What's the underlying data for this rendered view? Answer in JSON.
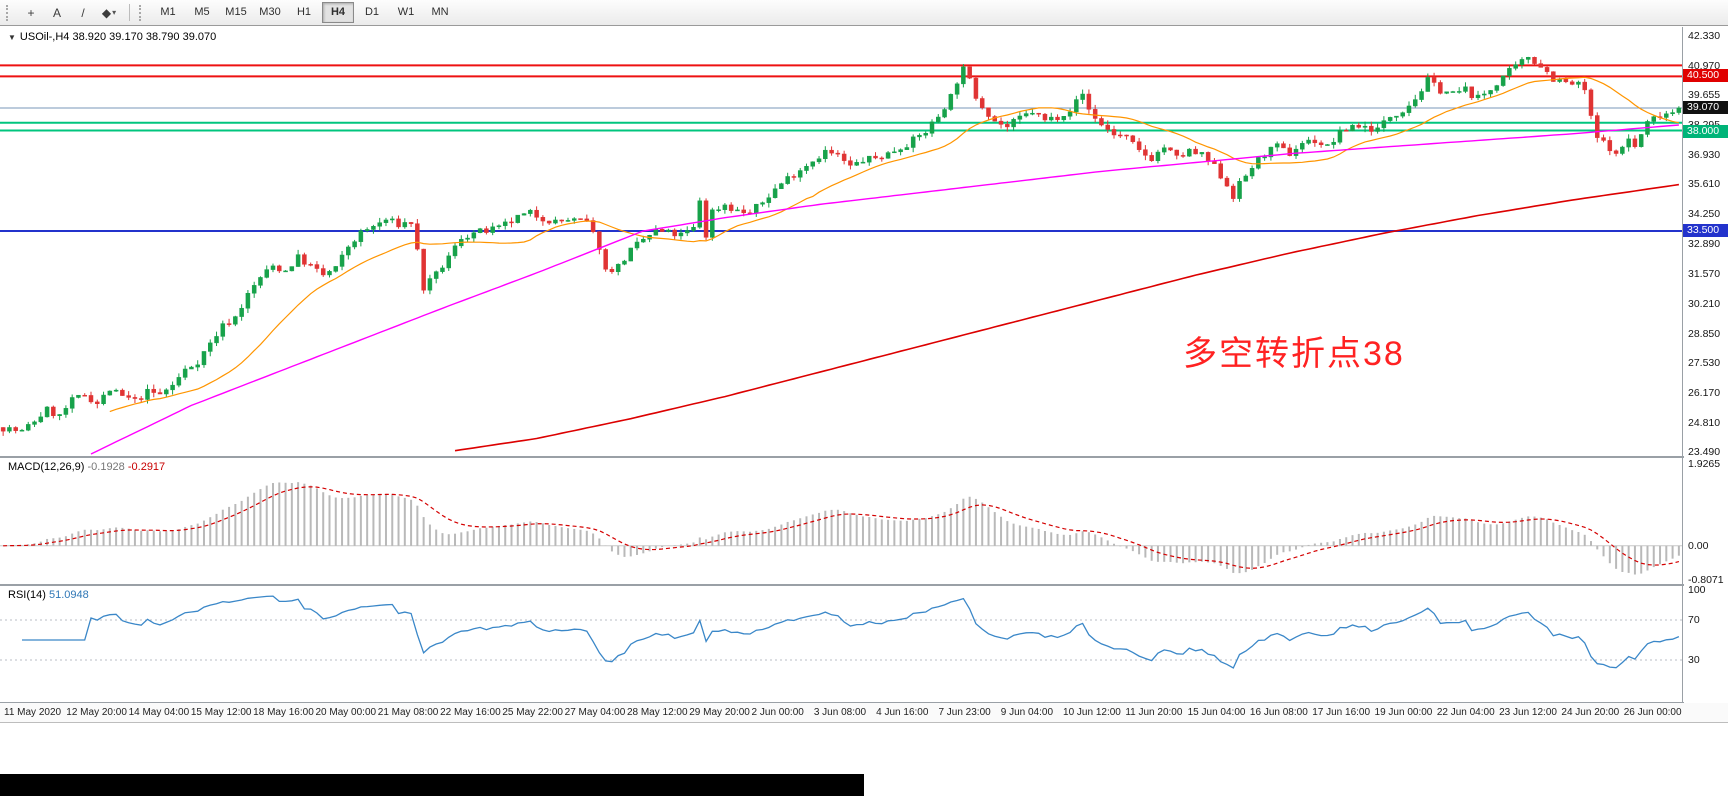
{
  "icons": {
    "collapse": "▼",
    "caret": "▾"
  },
  "toolbar": {
    "tools": [
      {
        "name": "crosshair",
        "glyph": "+",
        "caret": false
      },
      {
        "name": "text-label",
        "glyph": "A",
        "caret": false
      },
      {
        "name": "trendline",
        "glyph": "/",
        "caret": false
      },
      {
        "name": "drawing-tools",
        "glyph": "◆",
        "caret": true
      }
    ],
    "timeframes": [
      "M1",
      "M5",
      "M15",
      "M30",
      "H1",
      "H4",
      "D1",
      "W1",
      "MN"
    ],
    "active_timeframe": "H4"
  },
  "chart_data": {
    "type": "candlestick",
    "symbol": "USOil-",
    "timeframe": "H4",
    "title_display": "USOil-,H4 38.920 39.170 38.790 39.070",
    "ohlc_last": {
      "open": 38.92,
      "high": 39.17,
      "low": 38.79,
      "close": 39.07
    },
    "y_axis": {
      "range": [
        23.49,
        42.33
      ],
      "ticks": [
        "42.330",
        "40.970",
        "39.655",
        "38.295",
        "36.930",
        "35.610",
        "34.250",
        "32.890",
        "31.570",
        "30.210",
        "28.850",
        "27.530",
        "26.170",
        "24.810",
        "23.490"
      ],
      "badges": [
        {
          "text": "40.500",
          "price": 40.5,
          "bg": "#e00000"
        },
        {
          "text": "39.070",
          "price": 39.07,
          "bg": "#111111"
        },
        {
          "text": "38.000",
          "price": 38.0,
          "bg": "#00b478"
        },
        {
          "text": "33.500",
          "price": 33.5,
          "bg": "#2333cc"
        }
      ]
    },
    "x_axis": {
      "ticks": [
        "11 May 2020",
        "12 May 20:00",
        "14 May 04:00",
        "15 May 12:00",
        "18 May 16:00",
        "20 May 00:00",
        "21 May 08:00",
        "22 May 16:00",
        "25 May 22:00",
        "27 May 04:00",
        "28 May 12:00",
        "29 May 20:00",
        "2 Jun 00:00",
        "3 Jun 08:00",
        "4 Jun 16:00",
        "7 Jun 23:00",
        "9 Jun 04:00",
        "10 Jun 12:00",
        "11 Jun 20:00",
        "15 Jun 04:00",
        "16 Jun 08:00",
        "17 Jun 16:00",
        "19 Jun 00:00",
        "22 Jun 04:00",
        "23 Jun 12:00",
        "24 Jun 20:00",
        "26 Jun 00:00"
      ]
    },
    "candles": {
      "count": 268,
      "up_color": "#17a24a",
      "down_color": "#e03434",
      "close_anchors": [
        [
          0,
          24.6
        ],
        [
          3,
          24.4
        ],
        [
          5,
          24.9
        ],
        [
          7,
          25.4
        ],
        [
          9,
          25.1
        ],
        [
          11,
          25.8
        ],
        [
          13,
          26.1
        ],
        [
          15,
          25.7
        ],
        [
          17,
          26.3
        ],
        [
          19,
          26.0
        ],
        [
          21,
          25.8
        ],
        [
          23,
          26.2
        ],
        [
          25,
          26.1
        ],
        [
          27,
          26.5
        ],
        [
          29,
          27.2
        ],
        [
          31,
          27.6
        ],
        [
          33,
          28.4
        ],
        [
          35,
          29.2
        ],
        [
          37,
          29.6
        ],
        [
          39,
          30.6
        ],
        [
          41,
          31.4
        ],
        [
          43,
          31.9
        ],
        [
          45,
          31.7
        ],
        [
          47,
          32.3
        ],
        [
          49,
          31.9
        ],
        [
          51,
          31.5
        ],
        [
          53,
          31.8
        ],
        [
          55,
          32.8
        ],
        [
          57,
          33.4
        ],
        [
          59,
          33.7
        ],
        [
          61,
          34.0
        ],
        [
          63,
          33.8
        ],
        [
          65,
          33.9
        ],
        [
          66,
          32.6
        ],
        [
          67,
          30.9
        ],
        [
          69,
          31.5
        ],
        [
          71,
          32.3
        ],
        [
          73,
          33.2
        ],
        [
          75,
          33.4
        ],
        [
          77,
          33.5
        ],
        [
          79,
          33.6
        ],
        [
          82,
          34.1
        ],
        [
          84,
          34.3
        ],
        [
          86,
          34.1
        ],
        [
          88,
          33.9
        ],
        [
          90,
          34.0
        ],
        [
          93,
          33.9
        ],
        [
          95,
          32.8
        ],
        [
          96,
          31.7
        ],
        [
          98,
          31.9
        ],
        [
          100,
          32.6
        ],
        [
          102,
          33.1
        ],
        [
          104,
          33.5
        ],
        [
          106,
          33.4
        ],
        [
          108,
          33.3
        ],
        [
          110,
          33.6
        ],
        [
          111,
          34.9
        ],
        [
          112,
          33.3
        ],
        [
          113,
          34.4
        ],
        [
          115,
          34.7
        ],
        [
          117,
          34.4
        ],
        [
          119,
          34.3
        ],
        [
          121,
          34.8
        ],
        [
          123,
          35.4
        ],
        [
          125,
          35.9
        ],
        [
          127,
          36.3
        ],
        [
          129,
          36.7
        ],
        [
          131,
          37.1
        ],
        [
          133,
          36.9
        ],
        [
          135,
          36.4
        ],
        [
          137,
          36.7
        ],
        [
          139,
          36.8
        ],
        [
          141,
          37.0
        ],
        [
          143,
          37.3
        ],
        [
          145,
          37.6
        ],
        [
          147,
          38.0
        ],
        [
          149,
          38.7
        ],
        [
          151,
          39.6
        ],
        [
          152,
          40.3
        ],
        [
          153,
          40.8
        ],
        [
          154,
          40.3
        ],
        [
          155,
          39.6
        ],
        [
          156,
          39.2
        ],
        [
          158,
          38.5
        ],
        [
          160,
          38.2
        ],
        [
          162,
          38.6
        ],
        [
          164,
          38.9
        ],
        [
          166,
          38.5
        ],
        [
          168,
          38.7
        ],
        [
          170,
          39.0
        ],
        [
          172,
          39.7
        ],
        [
          173,
          39.0
        ],
        [
          175,
          38.3
        ],
        [
          177,
          37.9
        ],
        [
          179,
          37.7
        ],
        [
          181,
          37.1
        ],
        [
          183,
          36.8
        ],
        [
          185,
          37.3
        ],
        [
          187,
          36.8
        ],
        [
          189,
          37.1
        ],
        [
          191,
          36.9
        ],
        [
          193,
          36.4
        ],
        [
          195,
          35.6
        ],
        [
          196,
          35.1
        ],
        [
          197,
          35.6
        ],
        [
          199,
          36.4
        ],
        [
          201,
          37.0
        ],
        [
          203,
          37.3
        ],
        [
          205,
          37.0
        ],
        [
          207,
          37.5
        ],
        [
          209,
          37.6
        ],
        [
          211,
          37.3
        ],
        [
          213,
          37.9
        ],
        [
          215,
          38.3
        ],
        [
          217,
          38.2
        ],
        [
          219,
          38.1
        ],
        [
          221,
          38.7
        ],
        [
          223,
          39.0
        ],
        [
          225,
          39.5
        ],
        [
          227,
          40.3
        ],
        [
          229,
          39.9
        ],
        [
          231,
          39.7
        ],
        [
          233,
          39.9
        ],
        [
          235,
          39.5
        ],
        [
          237,
          39.9
        ],
        [
          239,
          40.5
        ],
        [
          241,
          40.9
        ],
        [
          243,
          41.4
        ],
        [
          244,
          41.2
        ],
        [
          245,
          41.0
        ],
        [
          247,
          40.4
        ],
        [
          249,
          40.2
        ],
        [
          251,
          40.1
        ],
        [
          252,
          39.9
        ],
        [
          253,
          38.6
        ],
        [
          254,
          37.7
        ],
        [
          256,
          37.3
        ],
        [
          257,
          36.9
        ],
        [
          259,
          37.7
        ],
        [
          260,
          37.3
        ],
        [
          262,
          38.4
        ],
        [
          264,
          38.8
        ],
        [
          266,
          38.9
        ],
        [
          267,
          39.07
        ]
      ]
    },
    "moving_averages": [
      {
        "name": "ma-fast",
        "color": "#ff9500",
        "period": 18,
        "width": 1.2
      },
      {
        "name": "ma-mid",
        "color": "#ff00ff",
        "width": 1.4,
        "anchors": [
          [
            14,
            23.4
          ],
          [
            30,
            25.6
          ],
          [
            50,
            27.8
          ],
          [
            70,
            30.0
          ],
          [
            85,
            31.6
          ],
          [
            102,
            33.5
          ],
          [
            115,
            34.1
          ],
          [
            130,
            34.7
          ],
          [
            145,
            35.2
          ],
          [
            160,
            35.7
          ],
          [
            175,
            36.2
          ],
          [
            190,
            36.6
          ],
          [
            205,
            37.0
          ],
          [
            220,
            37.3
          ],
          [
            235,
            37.6
          ],
          [
            250,
            37.9
          ],
          [
            267,
            38.3
          ]
        ]
      },
      {
        "name": "ma-slow",
        "color": "#dc0000",
        "width": 1.6,
        "anchors": [
          [
            72,
            23.55
          ],
          [
            85,
            24.1
          ],
          [
            100,
            25.0
          ],
          [
            115,
            26.0
          ],
          [
            130,
            27.1
          ],
          [
            145,
            28.2
          ],
          [
            160,
            29.3
          ],
          [
            175,
            30.4
          ],
          [
            190,
            31.5
          ],
          [
            205,
            32.5
          ],
          [
            220,
            33.4
          ],
          [
            235,
            34.2
          ],
          [
            250,
            34.9
          ],
          [
            267,
            35.6
          ]
        ]
      }
    ],
    "horizontal_lines": [
      {
        "price": 41.0,
        "color": "#ee1111",
        "width": 2
      },
      {
        "price": 40.5,
        "color": "#ee1111",
        "width": 2
      },
      {
        "price": 38.4,
        "color": "#00c57e",
        "width": 2
      },
      {
        "price": 38.05,
        "color": "#00c57e",
        "width": 2
      },
      {
        "price": 33.5,
        "color": "#2333cc",
        "width": 2
      }
    ],
    "current_price_line": {
      "price": 39.07,
      "color": "#7a97b8",
      "width": 1
    },
    "annotation": {
      "text": "多空转折点38",
      "color": "#ff2222"
    },
    "indicators": {
      "macd": {
        "label": "MACD(12,26,9)",
        "value_main": "-0.1928",
        "value_signal": "-0.2917",
        "ticks": [
          "1.9265",
          "0.00",
          "-0.8071"
        ],
        "tick_values": [
          1.9265,
          0,
          -0.8071
        ],
        "range": [
          -0.8071,
          1.9265
        ],
        "histogram_color": "#b9b9b9",
        "signal_color": "#d40000",
        "params": [
          12,
          26,
          9
        ]
      },
      "rsi": {
        "label": "RSI(14)",
        "value": "51.0948",
        "ticks": [
          "100",
          "70",
          "30"
        ],
        "tick_values": [
          100,
          70,
          30
        ],
        "levels": [
          70,
          30
        ],
        "line_color": "#3a87c8",
        "period": 14
      }
    }
  }
}
